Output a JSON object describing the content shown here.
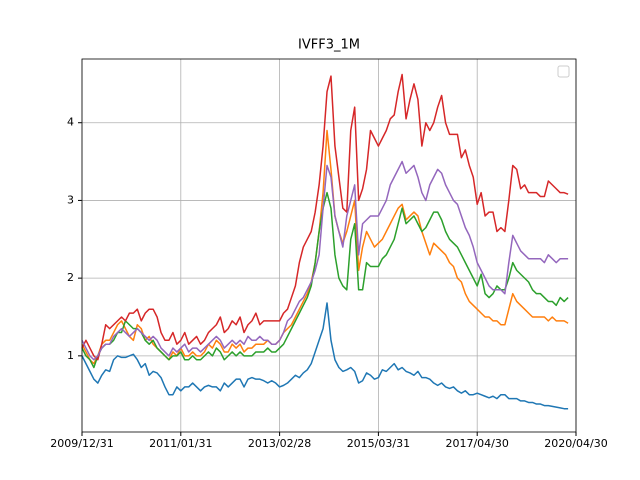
{
  "chart_data": {
    "type": "line",
    "title": "IVFF3_1M",
    "categories": [
      "2009/12/31",
      null,
      null,
      null,
      null,
      null,
      null,
      null,
      null,
      null,
      null,
      null,
      null,
      null,
      null,
      null,
      null,
      null,
      null,
      null,
      null,
      null,
      null,
      null,
      null,
      "2011/01/31",
      null,
      null,
      null,
      null,
      null,
      null,
      null,
      null,
      null,
      null,
      null,
      null,
      null,
      null,
      null,
      null,
      null,
      null,
      null,
      null,
      null,
      null,
      null,
      null,
      "2013/02/28",
      null,
      null,
      null,
      null,
      null,
      null,
      null,
      null,
      null,
      null,
      null,
      null,
      null,
      null,
      null,
      null,
      null,
      null,
      null,
      null,
      null,
      null,
      null,
      null,
      "2015/03/31",
      null,
      null,
      null,
      null,
      null,
      null,
      null,
      null,
      null,
      null,
      null,
      null,
      null,
      null,
      null,
      null,
      null,
      null,
      null,
      null,
      null,
      null,
      null,
      null,
      "2017/04/30",
      null,
      null,
      null,
      null,
      null,
      null,
      null,
      null,
      null,
      null,
      null,
      null,
      null,
      null,
      null,
      null,
      null,
      null,
      null,
      null,
      null,
      null,
      null,
      null,
      "2020/04/30"
    ],
    "series": [
      {
        "color": "#1f77b4",
        "values": [
          1.0,
          0.9,
          0.8,
          0.7,
          0.65,
          0.75,
          0.82,
          0.8,
          0.95,
          1.0,
          0.98,
          0.98,
          1.0,
          1.02,
          0.95,
          0.85,
          0.9,
          0.75,
          0.8,
          0.78,
          0.72,
          0.6,
          0.5,
          0.5,
          0.6,
          0.55,
          0.6,
          0.6,
          0.65,
          0.6,
          0.55,
          0.6,
          0.62,
          0.6,
          0.6,
          0.55,
          0.65,
          0.6,
          0.65,
          0.7,
          0.7,
          0.6,
          0.7,
          0.72,
          0.7,
          0.7,
          0.68,
          0.65,
          0.68,
          0.65,
          0.6,
          0.62,
          0.65,
          0.7,
          0.75,
          0.72,
          0.78,
          0.82,
          0.9,
          1.05,
          1.2,
          1.35,
          1.68,
          1.2,
          0.95,
          0.85,
          0.8,
          0.82,
          0.85,
          0.8,
          0.65,
          0.68,
          0.78,
          0.75,
          0.7,
          0.72,
          0.82,
          0.8,
          0.85,
          0.9,
          0.82,
          0.85,
          0.8,
          0.78,
          0.75,
          0.8,
          0.72,
          0.72,
          0.7,
          0.65,
          0.62,
          0.65,
          0.6,
          0.58,
          0.6,
          0.55,
          0.52,
          0.55,
          0.5,
          0.5,
          0.52,
          0.5,
          0.48,
          0.46,
          0.48,
          0.45,
          0.5,
          0.5,
          0.45,
          0.45,
          0.45,
          0.42,
          0.42,
          0.4,
          0.4,
          0.38,
          0.38,
          0.36,
          0.36,
          0.35,
          0.34,
          0.33,
          0.32,
          0.32,
          null,
          null
        ]
      },
      {
        "color": "#ff7f0e",
        "values": [
          1.15,
          1.05,
          0.95,
          0.9,
          1.0,
          1.15,
          1.2,
          1.2,
          1.3,
          1.4,
          1.45,
          1.35,
          1.25,
          1.2,
          1.4,
          1.35,
          1.2,
          1.25,
          1.15,
          1.1,
          1.05,
          1.0,
          0.95,
          1.05,
          1.0,
          1.1,
          1.0,
          1.0,
          1.05,
          1.0,
          1.0,
          1.05,
          1.15,
          1.1,
          1.2,
          1.15,
          1.05,
          1.05,
          1.15,
          1.1,
          1.15,
          1.05,
          1.1,
          1.1,
          1.15,
          1.15,
          1.15,
          1.2,
          1.15,
          1.15,
          1.2,
          1.3,
          1.35,
          1.4,
          1.5,
          1.6,
          1.7,
          1.8,
          1.95,
          2.2,
          2.6,
          3.1,
          3.9,
          3.4,
          2.8,
          2.6,
          2.45,
          2.6,
          2.8,
          3.0,
          2.1,
          2.4,
          2.6,
          2.5,
          2.4,
          2.45,
          2.5,
          2.6,
          2.7,
          2.8,
          2.9,
          2.95,
          2.75,
          2.8,
          2.85,
          2.8,
          2.6,
          2.45,
          2.3,
          2.45,
          2.4,
          2.35,
          2.3,
          2.2,
          2.15,
          2.0,
          1.95,
          1.8,
          1.7,
          1.65,
          1.6,
          1.55,
          1.5,
          1.5,
          1.45,
          1.45,
          1.4,
          1.4,
          1.6,
          1.8,
          1.7,
          1.65,
          1.6,
          1.55,
          1.5,
          1.5,
          1.5,
          1.5,
          1.45,
          1.5,
          1.45,
          1.45,
          1.45,
          1.42,
          null,
          null
        ]
      },
      {
        "color": "#2ca02c",
        "values": [
          1.1,
          1.0,
          0.95,
          0.85,
          1.0,
          1.1,
          1.15,
          1.15,
          1.2,
          1.3,
          1.3,
          1.45,
          1.4,
          1.35,
          1.35,
          1.3,
          1.2,
          1.15,
          1.2,
          1.1,
          1.05,
          1.0,
          0.95,
          1.0,
          1.0,
          1.05,
          0.95,
          0.95,
          1.0,
          0.95,
          0.95,
          1.0,
          1.05,
          1.0,
          1.1,
          1.05,
          0.95,
          1.0,
          1.05,
          1.0,
          1.05,
          1.0,
          1.0,
          1.0,
          1.05,
          1.05,
          1.05,
          1.1,
          1.05,
          1.05,
          1.1,
          1.15,
          1.25,
          1.35,
          1.45,
          1.55,
          1.65,
          1.75,
          1.9,
          2.2,
          2.6,
          2.9,
          3.1,
          2.9,
          2.3,
          2.0,
          1.9,
          1.85,
          2.5,
          2.7,
          1.85,
          1.85,
          2.2,
          2.15,
          2.15,
          2.15,
          2.25,
          2.3,
          2.4,
          2.5,
          2.7,
          2.9,
          2.7,
          2.75,
          2.8,
          2.7,
          2.6,
          2.65,
          2.75,
          2.85,
          2.85,
          2.75,
          2.6,
          2.5,
          2.45,
          2.4,
          2.3,
          2.2,
          2.1,
          2.0,
          1.9,
          2.05,
          1.8,
          1.75,
          1.8,
          1.9,
          1.85,
          1.85,
          2.0,
          2.2,
          2.1,
          2.05,
          2.0,
          1.95,
          1.85,
          1.8,
          1.8,
          1.75,
          1.7,
          1.7,
          1.65,
          1.75,
          1.7,
          1.75,
          null,
          null
        ]
      },
      {
        "color": "#d62728",
        "values": [
          1.1,
          1.2,
          1.1,
          1.0,
          0.95,
          1.15,
          1.4,
          1.35,
          1.4,
          1.45,
          1.5,
          1.45,
          1.55,
          1.55,
          1.6,
          1.45,
          1.55,
          1.6,
          1.6,
          1.5,
          1.3,
          1.2,
          1.2,
          1.3,
          1.15,
          1.2,
          1.3,
          1.15,
          1.2,
          1.25,
          1.15,
          1.2,
          1.3,
          1.35,
          1.4,
          1.5,
          1.3,
          1.35,
          1.45,
          1.4,
          1.5,
          1.3,
          1.4,
          1.45,
          1.55,
          1.4,
          1.45,
          1.45,
          1.45,
          1.45,
          1.45,
          1.55,
          1.6,
          1.75,
          1.9,
          2.2,
          2.4,
          2.5,
          2.6,
          2.85,
          3.2,
          3.7,
          4.4,
          4.6,
          3.7,
          3.3,
          2.9,
          2.85,
          3.9,
          4.2,
          3.0,
          3.15,
          3.4,
          3.9,
          3.8,
          3.7,
          3.8,
          3.9,
          4.05,
          4.1,
          4.4,
          4.62,
          4.05,
          4.3,
          4.5,
          4.3,
          3.7,
          4.0,
          3.9,
          4.0,
          4.2,
          4.35,
          4.0,
          3.85,
          3.85,
          3.85,
          3.55,
          3.65,
          3.45,
          3.3,
          2.95,
          3.1,
          2.8,
          2.85,
          2.85,
          2.6,
          2.65,
          2.6,
          3.0,
          3.45,
          3.4,
          3.15,
          3.2,
          3.1,
          3.1,
          3.1,
          3.05,
          3.05,
          3.25,
          3.2,
          3.15,
          3.1,
          3.1,
          3.08,
          null,
          null
        ]
      },
      {
        "color": "#9467bd",
        "values": [
          1.2,
          1.1,
          1.0,
          0.95,
          1.0,
          1.1,
          1.15,
          1.15,
          1.25,
          1.3,
          1.35,
          1.3,
          1.25,
          1.3,
          1.35,
          1.3,
          1.25,
          1.2,
          1.25,
          1.2,
          1.1,
          1.05,
          1.0,
          1.1,
          1.05,
          1.1,
          1.15,
          1.05,
          1.1,
          1.1,
          1.05,
          1.1,
          1.15,
          1.2,
          1.25,
          1.2,
          1.1,
          1.15,
          1.2,
          1.15,
          1.2,
          1.15,
          1.25,
          1.2,
          1.2,
          1.25,
          1.2,
          1.2,
          1.15,
          1.15,
          1.2,
          1.3,
          1.45,
          1.5,
          1.6,
          1.7,
          1.75,
          1.85,
          1.95,
          2.1,
          2.3,
          2.9,
          3.45,
          3.3,
          2.8,
          2.6,
          2.4,
          2.8,
          3.0,
          3.2,
          2.3,
          2.7,
          2.75,
          2.8,
          2.8,
          2.8,
          2.9,
          3.0,
          3.2,
          3.3,
          3.4,
          3.5,
          3.35,
          3.4,
          3.45,
          3.3,
          3.1,
          3.0,
          3.2,
          3.3,
          3.4,
          3.35,
          3.2,
          3.1,
          3.0,
          2.95,
          2.8,
          2.65,
          2.55,
          2.4,
          2.2,
          2.1,
          2.0,
          1.9,
          1.85,
          1.85,
          1.85,
          1.8,
          2.2,
          2.55,
          2.45,
          2.35,
          2.3,
          2.25,
          2.25,
          2.25,
          2.25,
          2.2,
          2.3,
          2.25,
          2.2,
          2.25,
          2.25,
          2.25,
          null,
          null
        ]
      }
    ],
    "ylim": [
      0.02,
      4.82
    ],
    "yticks": [
      1,
      2,
      3,
      4
    ],
    "grid": true,
    "legend": "upper right"
  }
}
